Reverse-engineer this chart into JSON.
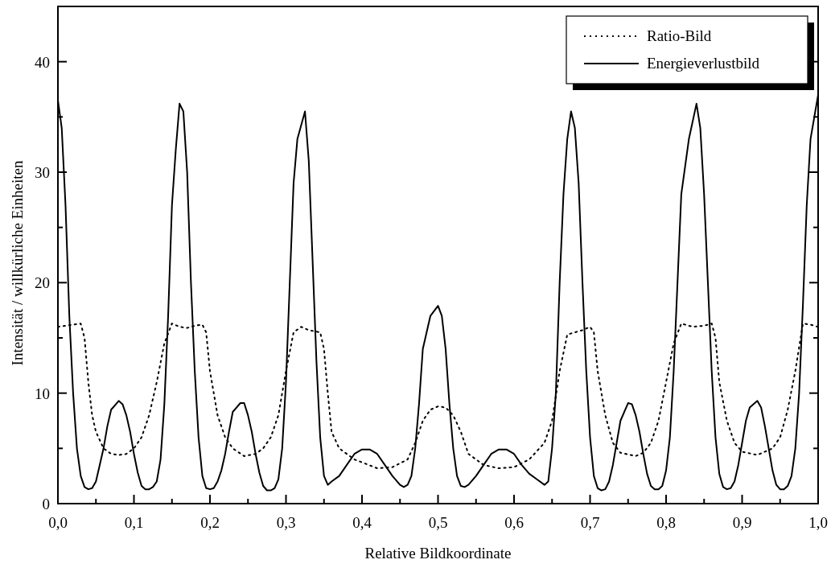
{
  "chart_data": {
    "type": "line",
    "xlabel": "Relative Bildkoordinate",
    "ylabel": "Intensität / willkürliche Einheiten",
    "xlim": [
      0,
      1
    ],
    "ylim": [
      0,
      45
    ],
    "xticks": [
      {
        "value": 0,
        "label": "0,0"
      },
      {
        "value": 0.05,
        "label": null
      },
      {
        "value": 0.1,
        "label": "0,1"
      },
      {
        "value": 0.15,
        "label": null
      },
      {
        "value": 0.2,
        "label": "0,2"
      },
      {
        "value": 0.25,
        "label": null
      },
      {
        "value": 0.3,
        "label": "0,3"
      },
      {
        "value": 0.35,
        "label": null
      },
      {
        "value": 0.4,
        "label": "0,4"
      },
      {
        "value": 0.45,
        "label": null
      },
      {
        "value": 0.5,
        "label": "0,5"
      },
      {
        "value": 0.55,
        "label": null
      },
      {
        "value": 0.6,
        "label": "0,6"
      },
      {
        "value": 0.65,
        "label": null
      },
      {
        "value": 0.7,
        "label": "0,7"
      },
      {
        "value": 0.75,
        "label": null
      },
      {
        "value": 0.8,
        "label": "0,8"
      },
      {
        "value": 0.85,
        "label": null
      },
      {
        "value": 0.9,
        "label": "0,9"
      },
      {
        "value": 0.95,
        "label": null
      },
      {
        "value": 1,
        "label": "1,0"
      }
    ],
    "yticks": [
      0,
      {
        "value": 5,
        "label": null
      },
      10,
      {
        "value": 15,
        "label": null
      },
      20,
      {
        "value": 25,
        "label": null
      },
      30,
      {
        "value": 35,
        "label": null
      },
      40
    ],
    "legend": "top right",
    "marker": "none",
    "series": [
      {
        "name": "Ratio-Bild",
        "color": "#000000",
        "line_style": "dotted",
        "x": [
          0,
          0.02,
          0.03,
          0.035,
          0.04,
          0.045,
          0.05,
          0.06,
          0.07,
          0.08,
          0.09,
          0.1,
          0.11,
          0.12,
          0.13,
          0.14,
          0.15,
          0.16,
          0.17,
          0.18,
          0.19,
          0.195,
          0.2,
          0.21,
          0.22,
          0.23,
          0.245,
          0.26,
          0.27,
          0.28,
          0.29,
          0.3,
          0.31,
          0.32,
          0.33,
          0.345,
          0.35,
          0.355,
          0.36,
          0.37,
          0.39,
          0.42,
          0.44,
          0.46,
          0.47,
          0.48,
          0.49,
          0.5,
          0.51,
          0.52,
          0.53,
          0.54,
          0.56,
          0.58,
          0.6,
          0.62,
          0.64,
          0.65,
          0.66,
          0.67,
          0.69,
          0.7,
          0.705,
          0.71,
          0.72,
          0.73,
          0.74,
          0.76,
          0.77,
          0.78,
          0.79,
          0.8,
          0.81,
          0.82,
          0.835,
          0.85,
          0.86,
          0.865,
          0.87,
          0.88,
          0.89,
          0.9,
          0.92,
          0.94,
          0.95,
          0.96,
          0.97,
          0.98,
          0.99,
          1
        ],
        "values": [
          16,
          16.2,
          16.3,
          15,
          11,
          8,
          6.5,
          5,
          4.5,
          4.4,
          4.5,
          5,
          6,
          8,
          11,
          14.5,
          16.3,
          16,
          15.9,
          16.1,
          16.2,
          15.5,
          12,
          8,
          6,
          5,
          4.3,
          4.5,
          5,
          6,
          8,
          12,
          15.5,
          16,
          15.7,
          15.5,
          14,
          10,
          6.5,
          5,
          4,
          3.2,
          3.3,
          4,
          5.5,
          7.5,
          8.5,
          8.8,
          8.7,
          8,
          6.5,
          4.5,
          3.5,
          3.2,
          3.3,
          4,
          5.5,
          7.5,
          12,
          15.3,
          15.7,
          16,
          15.5,
          12,
          8,
          5.5,
          4.6,
          4.3,
          4.6,
          5.5,
          7.5,
          11,
          14.5,
          16.3,
          16,
          16.1,
          16.3,
          15,
          11,
          7.5,
          5.5,
          4.7,
          4.4,
          5,
          6,
          8.5,
          12,
          16.3,
          16.2,
          16
        ]
      },
      {
        "name": "Energieverlustbild",
        "color": "#000000",
        "line_style": "solid",
        "x": [
          0,
          0.005,
          0.01,
          0.015,
          0.02,
          0.025,
          0.03,
          0.035,
          0.04,
          0.045,
          0.05,
          0.055,
          0.06,
          0.065,
          0.07,
          0.08,
          0.085,
          0.09,
          0.095,
          0.1,
          0.105,
          0.11,
          0.115,
          0.12,
          0.125,
          0.13,
          0.135,
          0.14,
          0.145,
          0.15,
          0.155,
          0.16,
          0.165,
          0.17,
          0.175,
          0.18,
          0.185,
          0.19,
          0.195,
          0.2,
          0.205,
          0.21,
          0.215,
          0.22,
          0.225,
          0.23,
          0.24,
          0.245,
          0.25,
          0.255,
          0.26,
          0.265,
          0.27,
          0.275,
          0.28,
          0.285,
          0.29,
          0.295,
          0.3,
          0.305,
          0.31,
          0.315,
          0.325,
          0.33,
          0.335,
          0.34,
          0.345,
          0.35,
          0.355,
          0.36,
          0.37,
          0.38,
          0.39,
          0.4,
          0.41,
          0.42,
          0.43,
          0.44,
          0.45,
          0.455,
          0.46,
          0.465,
          0.47,
          0.475,
          0.48,
          0.49,
          0.5,
          0.505,
          0.51,
          0.515,
          0.52,
          0.525,
          0.53,
          0.535,
          0.54,
          0.55,
          0.56,
          0.57,
          0.58,
          0.59,
          0.6,
          0.61,
          0.62,
          0.63,
          0.64,
          0.645,
          0.65,
          0.655,
          0.66,
          0.665,
          0.67,
          0.675,
          0.68,
          0.685,
          0.69,
          0.695,
          0.7,
          0.705,
          0.71,
          0.715,
          0.72,
          0.725,
          0.73,
          0.735,
          0.74,
          0.75,
          0.755,
          0.76,
          0.765,
          0.77,
          0.775,
          0.78,
          0.785,
          0.79,
          0.795,
          0.8,
          0.805,
          0.81,
          0.815,
          0.82,
          0.83,
          0.84,
          0.845,
          0.85,
          0.855,
          0.86,
          0.865,
          0.87,
          0.875,
          0.88,
          0.885,
          0.89,
          0.895,
          0.9,
          0.905,
          0.91,
          0.92,
          0.925,
          0.93,
          0.935,
          0.94,
          0.945,
          0.95,
          0.955,
          0.96,
          0.965,
          0.97,
          0.975,
          0.98,
          0.985,
          0.99,
          0.995,
          1
        ],
        "values": [
          36.5,
          34,
          27,
          17,
          10,
          5,
          2.5,
          1.5,
          1.3,
          1.4,
          2,
          3.5,
          5,
          7,
          8.5,
          9.3,
          9,
          8,
          6.5,
          4.5,
          2.8,
          1.6,
          1.3,
          1.3,
          1.5,
          2,
          4,
          9,
          17,
          27,
          32,
          36.2,
          35.5,
          30,
          20,
          12,
          6,
          2.5,
          1.4,
          1.3,
          1.4,
          2,
          3,
          4.5,
          6.5,
          8.3,
          9.1,
          9.1,
          8,
          6.5,
          4.5,
          2.8,
          1.6,
          1.2,
          1.2,
          1.4,
          2.2,
          5,
          11,
          20,
          29,
          33,
          35.5,
          31,
          22,
          13,
          6,
          2.5,
          1.7,
          2,
          2.5,
          3.5,
          4.5,
          4.9,
          4.9,
          4.5,
          3.5,
          2.5,
          1.7,
          1.5,
          1.7,
          2.5,
          5,
          9,
          14,
          17,
          17.9,
          17,
          14,
          9,
          5,
          2.5,
          1.6,
          1.5,
          1.7,
          2.5,
          3.5,
          4.5,
          4.9,
          4.9,
          4.5,
          3.5,
          2.7,
          2.2,
          1.7,
          2,
          5,
          10,
          20,
          28,
          33,
          35.5,
          34,
          29,
          20,
          12,
          6,
          2.5,
          1.4,
          1.2,
          1.3,
          2,
          3.5,
          5.5,
          7.5,
          9.1,
          9,
          8,
          6.5,
          4.5,
          2.7,
          1.6,
          1.3,
          1.3,
          1.6,
          3,
          6,
          12,
          20,
          28,
          33,
          36.2,
          34,
          28,
          20,
          12,
          6,
          2.7,
          1.5,
          1.3,
          1.4,
          2,
          3.5,
          5.5,
          7.5,
          8.7,
          9.3,
          8.7,
          7,
          5,
          3,
          1.7,
          1.3,
          1.3,
          1.6,
          2.5,
          5,
          10,
          18,
          27,
          33,
          35,
          37
        ]
      }
    ]
  }
}
